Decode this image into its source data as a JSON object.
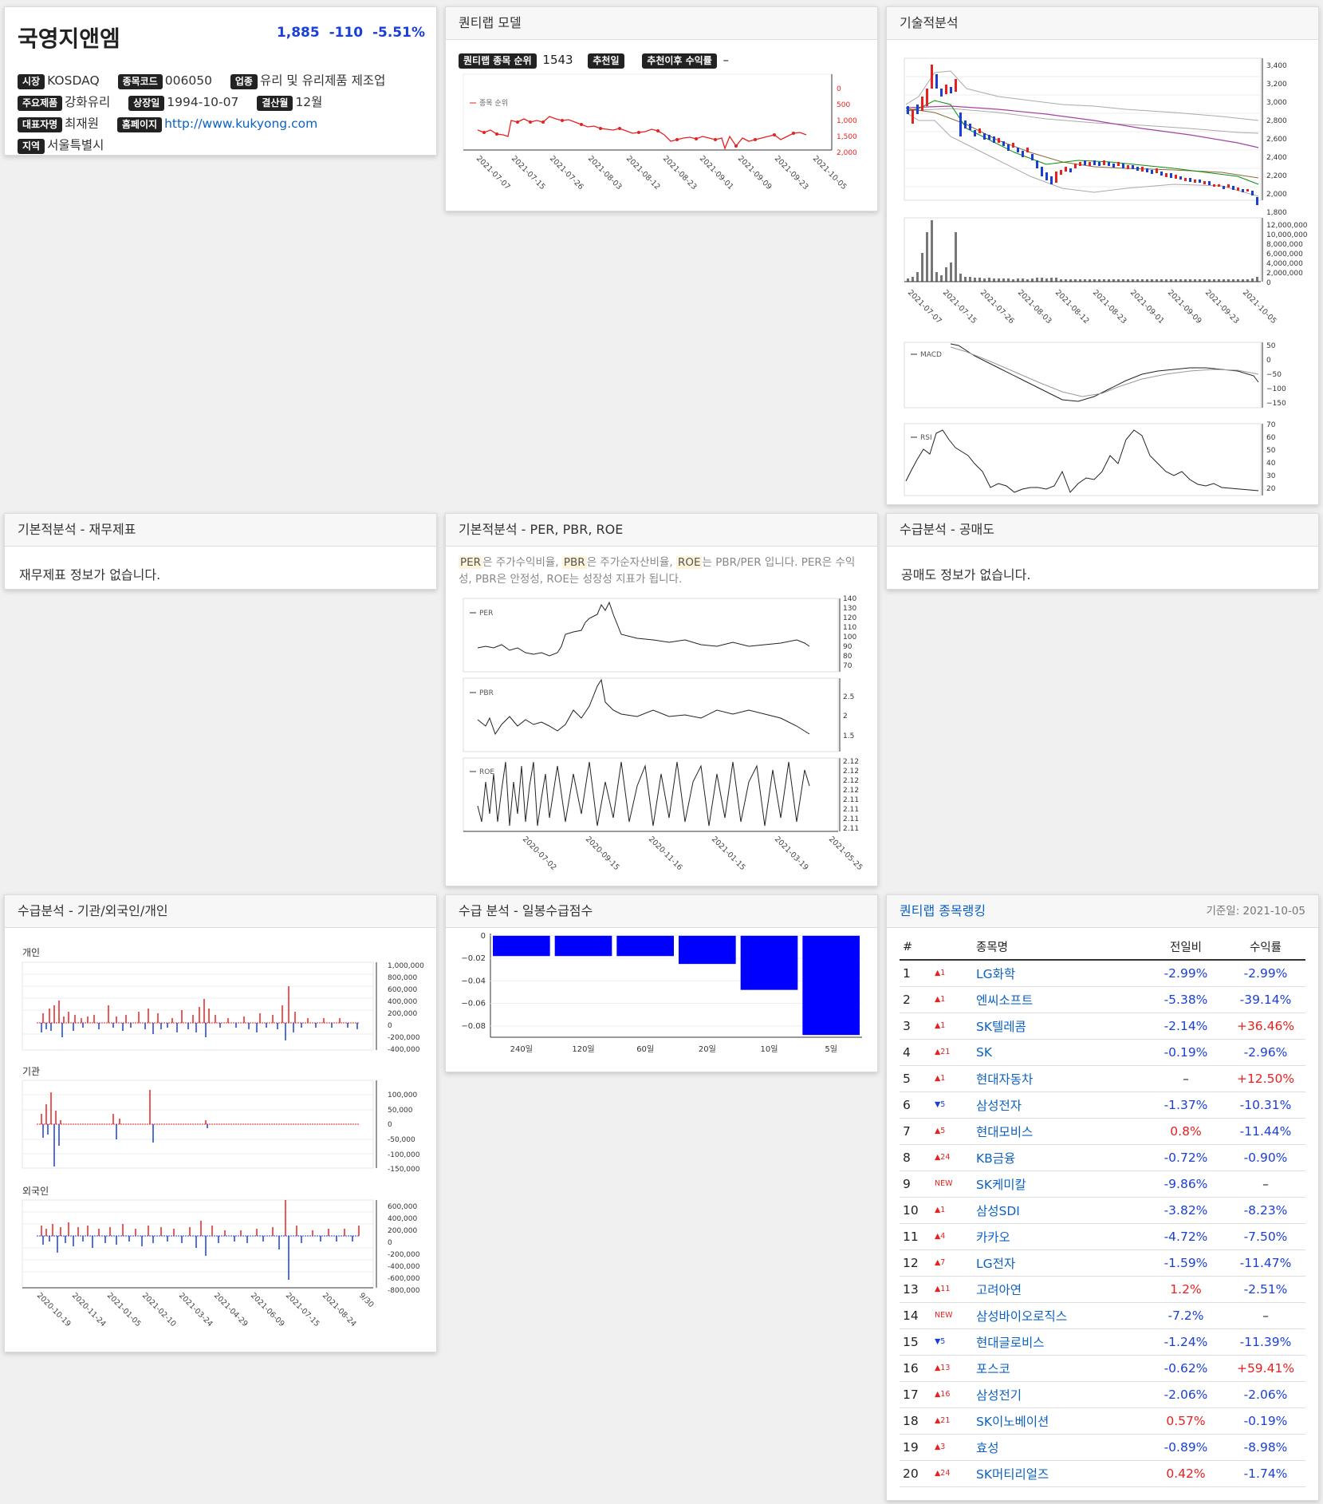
{
  "stock": {
    "name": "국영지앤엠",
    "price": "1,885",
    "change": "-110",
    "change_pct": "-5.51%",
    "market_label": "시장",
    "market": "KOSDAQ",
    "code_label": "종목코드",
    "code": "006050",
    "industry_label": "업종",
    "industry": "유리 및 유리제품 제조업",
    "product_label": "주요제품",
    "product": "강화유리",
    "listed_label": "상장일",
    "listed": "1994-10-07",
    "fiscal_label": "결산월",
    "fiscal": "12월",
    "ceo_label": "대표자명",
    "ceo": "최재원",
    "homepage_label": "홈페이지",
    "homepage": "http://www.kukyong.com",
    "region_label": "지역",
    "region": "서울특별시"
  },
  "quant_model": {
    "title": "퀀티랩 모델",
    "rank_label": "퀀티랩 종목 순위",
    "rank": "1543",
    "rec_date_label": "추천일",
    "return_label": "추천이후 수익률",
    "return_value": "–",
    "legend": "종목 순위",
    "y_ticks": [
      "0",
      "500",
      "1,000",
      "1,500",
      "2,000"
    ],
    "x_ticks": [
      "2021-07-07",
      "2021-07-15",
      "2021-07-26",
      "2021-08-03",
      "2021-08-12",
      "2021-08-23",
      "2021-09-01",
      "2021-09-09",
      "2021-09-23",
      "2021-10-05"
    ]
  },
  "technical": {
    "title": "기술적분석",
    "price_ticks": [
      "3,400",
      "3,200",
      "3,000",
      "2,800",
      "2,600",
      "2,400",
      "2,200",
      "2,000",
      "1,800"
    ],
    "volume_ticks": [
      "12,000,000",
      "10,000,000",
      "8,000,000",
      "6,000,000",
      "4,000,000",
      "2,000,000",
      "0"
    ],
    "x_ticks": [
      "2021-07-07",
      "2021-07-15",
      "2021-07-26",
      "2021-08-03",
      "2021-08-12",
      "2021-08-23",
      "2021-09-01",
      "2021-09-09",
      "2021-09-23",
      "2021-10-05"
    ],
    "macd_label": "MACD",
    "macd_ticks": [
      "50",
      "0",
      "−50",
      "−100",
      "−150"
    ],
    "rsi_label": "RSI",
    "rsi_ticks": [
      "70",
      "60",
      "50",
      "40",
      "30",
      "20"
    ]
  },
  "financials": {
    "title": "기본적분석 - 재무제표",
    "message": "재무제표 정보가 없습니다."
  },
  "ratios": {
    "title": "기본적분석 - PER, PBR, ROE",
    "per": "PER",
    "per_text": "은 주가수익비율,",
    "pbr": "PBR",
    "pbr_text": "은 주가순자산비율,",
    "roe": "ROE",
    "roe_text": "는 PBR/PER 입니다. PER은 수익성, PBR은 안정성, ROE는 성장성 지표가 됩니다.",
    "per_label": "PER",
    "per_ticks": [
      "140",
      "130",
      "120",
      "110",
      "100",
      "90",
      "80",
      "70"
    ],
    "pbr_label": "PBR",
    "pbr_ticks": [
      "2.5",
      "2",
      "1.5"
    ],
    "roe_label": "ROE",
    "roe_ticks": [
      "2.12",
      "2.12",
      "2.12",
      "2.12",
      "2.11",
      "2.11",
      "2.11",
      "2.11"
    ],
    "x_ticks": [
      "2020-07-02",
      "2020-09-15",
      "2020-11-16",
      "2021-01-15",
      "2021-03-19",
      "2021-05-25"
    ]
  },
  "short": {
    "title": "수급분석 - 공매도",
    "message": "공매도 정보가 없습니다."
  },
  "investors": {
    "title": "수급분석 - 기관/외국인/개인",
    "individual_label": "개인",
    "individual_ticks": [
      "1,000,000",
      "800,000",
      "600,000",
      "400,000",
      "200,000",
      "0",
      "-200,000",
      "-400,000"
    ],
    "institution_label": "기관",
    "institution_ticks": [
      "100,000",
      "50,000",
      "0",
      "-50,000",
      "-100,000",
      "-150,000"
    ],
    "foreign_label": "외국인",
    "foreign_ticks": [
      "600,000",
      "400,000",
      "200,000",
      "0",
      "-200,000",
      "-400,000",
      "-600,000",
      "-800,000"
    ],
    "x_ticks": [
      "2020-10-19",
      "2020-11-24",
      "2021-01-05",
      "2021-02-10",
      "2021-03-24",
      "2021-04-29",
      "2021-06-09",
      "2021-07-15",
      "2021-08-24",
      "9/30"
    ]
  },
  "supply_score": {
    "title": "수급 분석 - 일봉수급점수",
    "y_ticks": [
      "0",
      "−0.02",
      "−0.04",
      "−0.06",
      "−0.08"
    ],
    "chart_data": {
      "type": "bar",
      "categories": [
        "240일",
        "120일",
        "60일",
        "20일",
        "10일",
        "5일"
      ],
      "values": [
        -0.018,
        -0.018,
        -0.018,
        -0.025,
        -0.048,
        -0.088
      ],
      "ylim": [
        -0.09,
        0.002
      ]
    }
  },
  "ranking": {
    "title": "퀀티랩 종목랭킹",
    "date": "기준일: 2021-10-05",
    "headers": [
      "#",
      "종목명",
      "전일비",
      "수익률"
    ],
    "rows": [
      {
        "n": "1",
        "mv": "▲1",
        "mvd": "up",
        "name": "LG화학",
        "chg": "-2.99%",
        "chgc": "neg",
        "ret": "-2.99%",
        "retc": "neg"
      },
      {
        "n": "2",
        "mv": "▲1",
        "mvd": "up",
        "name": "엔씨소프트",
        "chg": "-5.38%",
        "chgc": "neg",
        "ret": "-39.14%",
        "retc": "neg"
      },
      {
        "n": "3",
        "mv": "▲1",
        "mvd": "up",
        "name": "SK텔레콤",
        "chg": "-2.14%",
        "chgc": "neg",
        "ret": "+36.46%",
        "retc": "pos"
      },
      {
        "n": "4",
        "mv": "▲21",
        "mvd": "up",
        "name": "SK",
        "chg": "-0.19%",
        "chgc": "neg",
        "ret": "-2.96%",
        "retc": "neg"
      },
      {
        "n": "5",
        "mv": "▲1",
        "mvd": "up",
        "name": "현대자동차",
        "chg": "–",
        "chgc": "none",
        "ret": "+12.50%",
        "retc": "pos"
      },
      {
        "n": "6",
        "mv": "▼5",
        "mvd": "down",
        "name": "삼성전자",
        "chg": "-1.37%",
        "chgc": "neg",
        "ret": "-10.31%",
        "retc": "neg"
      },
      {
        "n": "7",
        "mv": "▲5",
        "mvd": "up",
        "name": "현대모비스",
        "chg": "0.8%",
        "chgc": "pos",
        "ret": "-11.44%",
        "retc": "neg"
      },
      {
        "n": "8",
        "mv": "▲24",
        "mvd": "up",
        "name": "KB금융",
        "chg": "-0.72%",
        "chgc": "neg",
        "ret": "-0.90%",
        "retc": "neg"
      },
      {
        "n": "9",
        "mv": "NEW",
        "mvd": "up",
        "name": "SK케미칼",
        "chg": "-9.86%",
        "chgc": "neg",
        "ret": "–",
        "retc": "none"
      },
      {
        "n": "10",
        "mv": "▲1",
        "mvd": "up",
        "name": "삼성SDI",
        "chg": "-3.82%",
        "chgc": "neg",
        "ret": "-8.23%",
        "retc": "neg"
      },
      {
        "n": "11",
        "mv": "▲4",
        "mvd": "up",
        "name": "카카오",
        "chg": "-4.72%",
        "chgc": "neg",
        "ret": "-7.50%",
        "retc": "neg"
      },
      {
        "n": "12",
        "mv": "▲7",
        "mvd": "up",
        "name": "LG전자",
        "chg": "-1.59%",
        "chgc": "neg",
        "ret": "-11.47%",
        "retc": "neg"
      },
      {
        "n": "13",
        "mv": "▲11",
        "mvd": "up",
        "name": "고려아연",
        "chg": "1.2%",
        "chgc": "pos",
        "ret": "-2.51%",
        "retc": "neg"
      },
      {
        "n": "14",
        "mv": "NEW",
        "mvd": "up",
        "name": "삼성바이오로직스",
        "chg": "-7.2%",
        "chgc": "neg",
        "ret": "–",
        "retc": "none"
      },
      {
        "n": "15",
        "mv": "▼5",
        "mvd": "down",
        "name": "현대글로비스",
        "chg": "-1.24%",
        "chgc": "neg",
        "ret": "-11.39%",
        "retc": "neg"
      },
      {
        "n": "16",
        "mv": "▲13",
        "mvd": "up",
        "name": "포스코",
        "chg": "-0.62%",
        "chgc": "neg",
        "ret": "+59.41%",
        "retc": "pos"
      },
      {
        "n": "17",
        "mv": "▲16",
        "mvd": "up",
        "name": "삼성전기",
        "chg": "-2.06%",
        "chgc": "neg",
        "ret": "-2.06%",
        "retc": "neg"
      },
      {
        "n": "18",
        "mv": "▲21",
        "mvd": "up",
        "name": "SK이노베이션",
        "chg": "0.57%",
        "chgc": "pos",
        "ret": "-0.19%",
        "retc": "neg"
      },
      {
        "n": "19",
        "mv": "▲3",
        "mvd": "up",
        "name": "효성",
        "chg": "-0.89%",
        "chgc": "neg",
        "ret": "-8.98%",
        "retc": "neg"
      },
      {
        "n": "20",
        "mv": "▲24",
        "mvd": "up",
        "name": "SK머티리얼즈",
        "chg": "0.42%",
        "chgc": "pos",
        "ret": "-1.74%",
        "retc": "neg"
      }
    ]
  },
  "colors": {
    "up": "#e82020",
    "down": "#1a3fd6",
    "bar": "#0000ff",
    "link": "#0b62c4"
  }
}
